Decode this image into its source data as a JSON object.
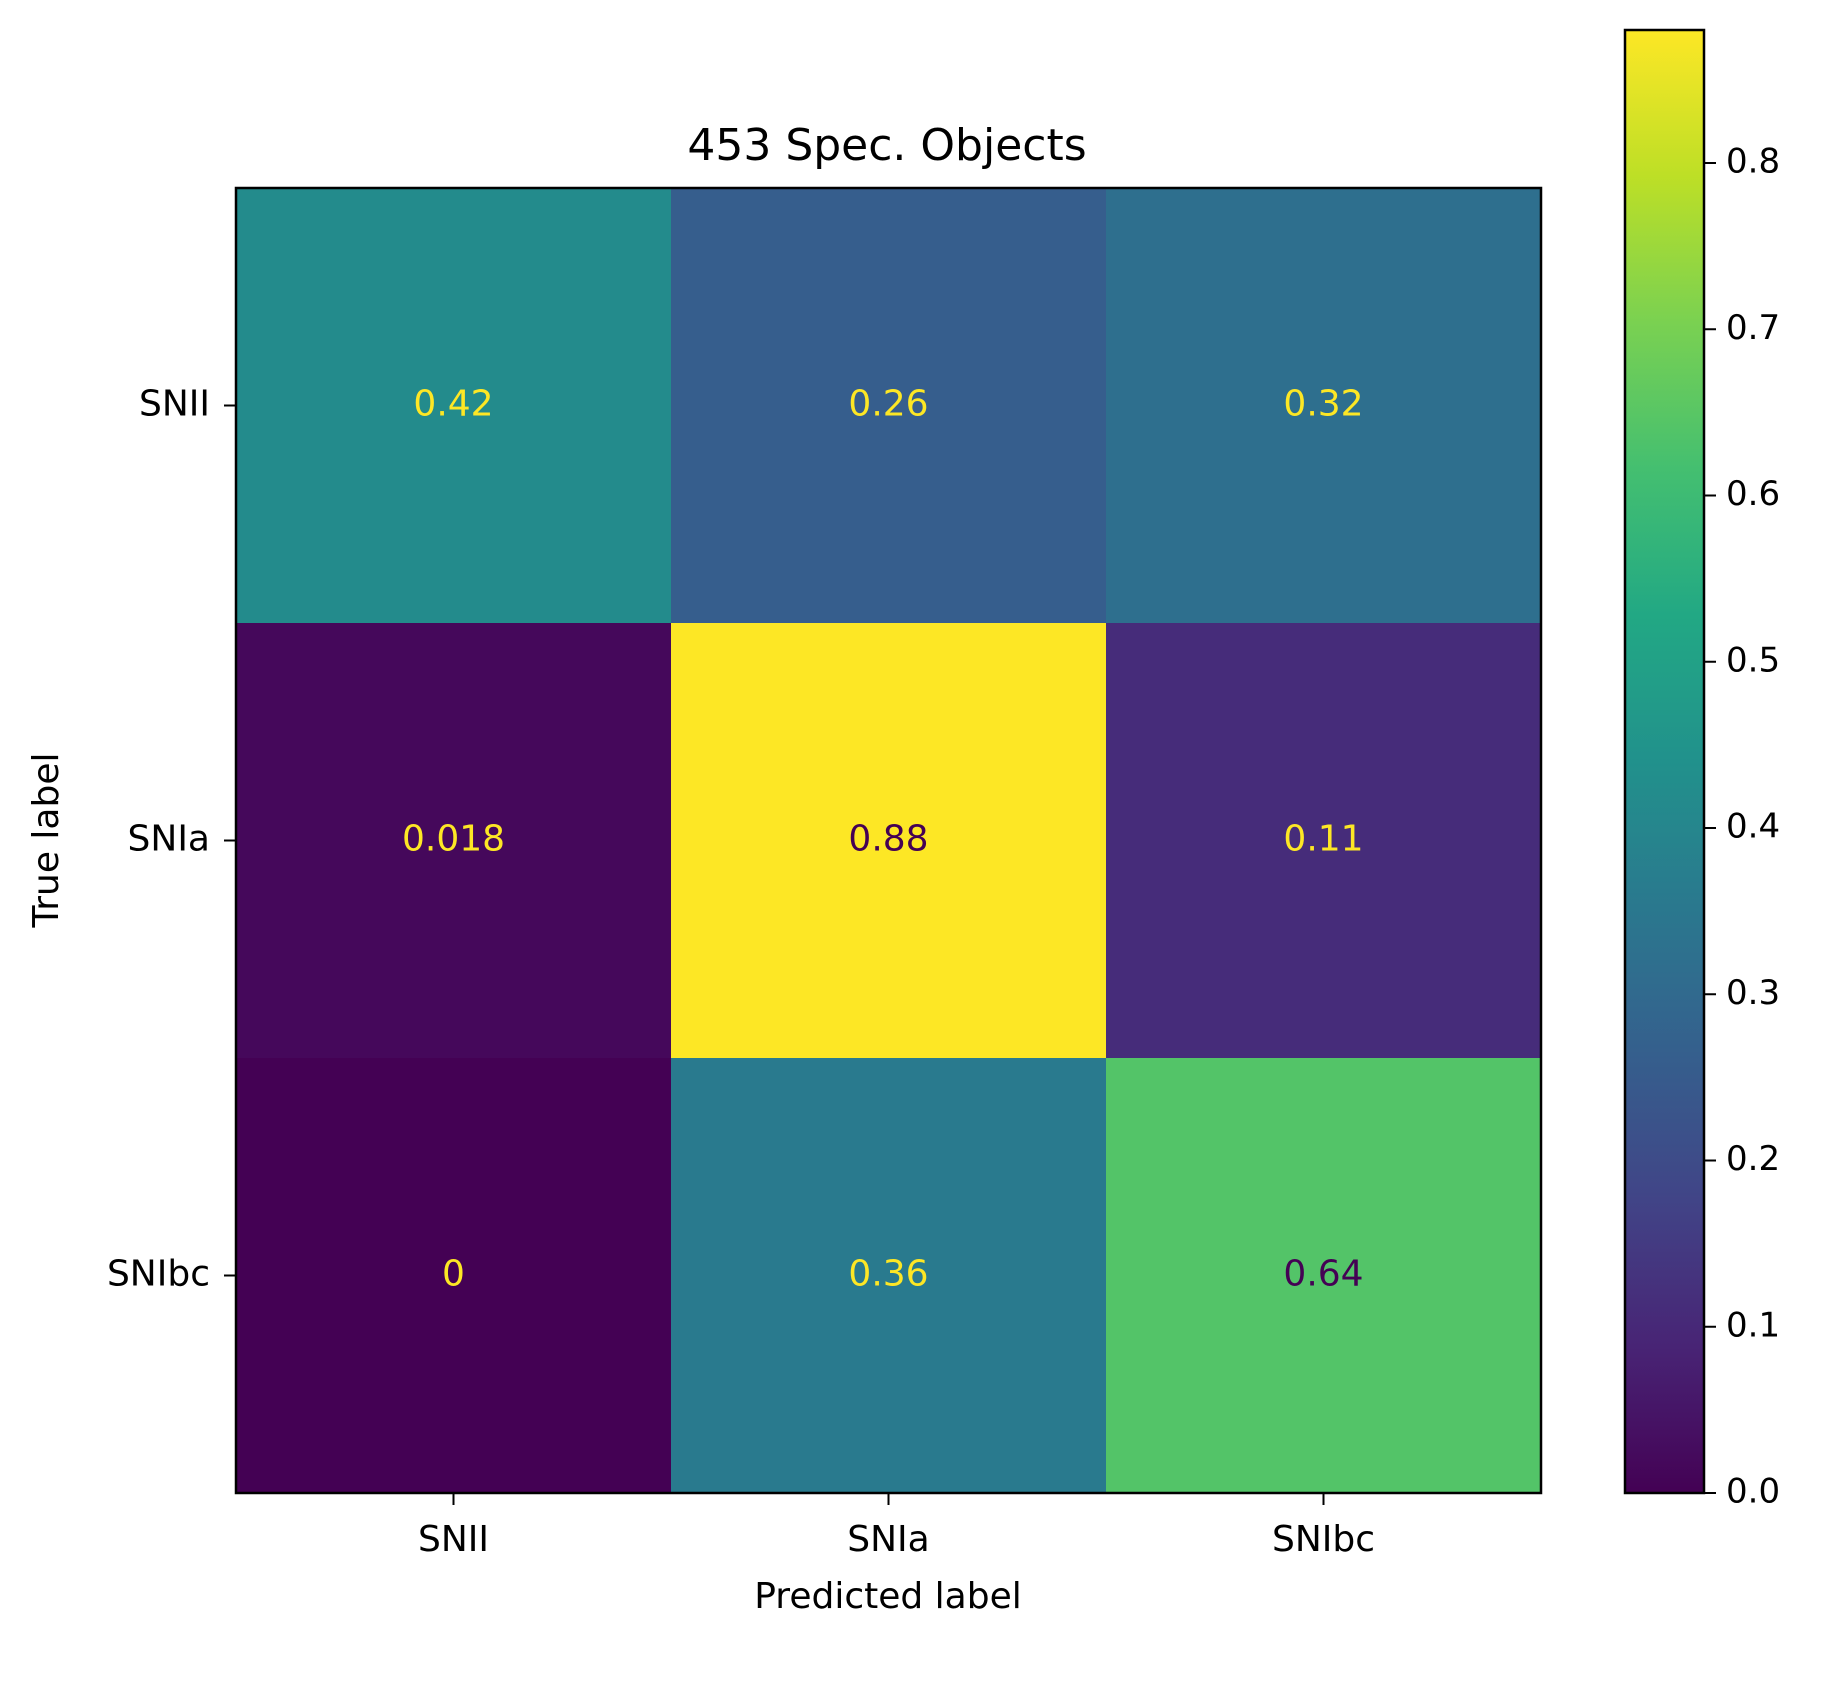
{
  "chart_data": {
    "type": "heatmap",
    "title": "453 Spec. Objects",
    "xlabel": "Predicted label",
    "ylabel": "True label",
    "x_categories": [
      "SNII",
      "SNIa",
      "SNIbc"
    ],
    "y_categories": [
      "SNII",
      "SNIa",
      "SNIbc"
    ],
    "values": [
      [
        0.42,
        0.26,
        0.32
      ],
      [
        0.018,
        0.88,
        0.11
      ],
      [
        0,
        0.36,
        0.64
      ]
    ],
    "value_labels": [
      [
        "0.42",
        "0.26",
        "0.32"
      ],
      [
        "0.018",
        "0.88",
        "0.11"
      ],
      [
        "0",
        "0.36",
        "0.64"
      ]
    ],
    "colormap": "viridis",
    "colorbar": {
      "range": [
        0,
        0.88
      ],
      "ticks": [
        0.0,
        0.1,
        0.2,
        0.3,
        0.4,
        0.5,
        0.6,
        0.7,
        0.8
      ],
      "tick_labels": [
        "0.0",
        "0.1",
        "0.2",
        "0.3",
        "0.4",
        "0.5",
        "0.6",
        "0.7",
        "0.8"
      ]
    },
    "text_colors": {
      "light": "#fde725",
      "dark": "#440154"
    },
    "grid": false
  }
}
